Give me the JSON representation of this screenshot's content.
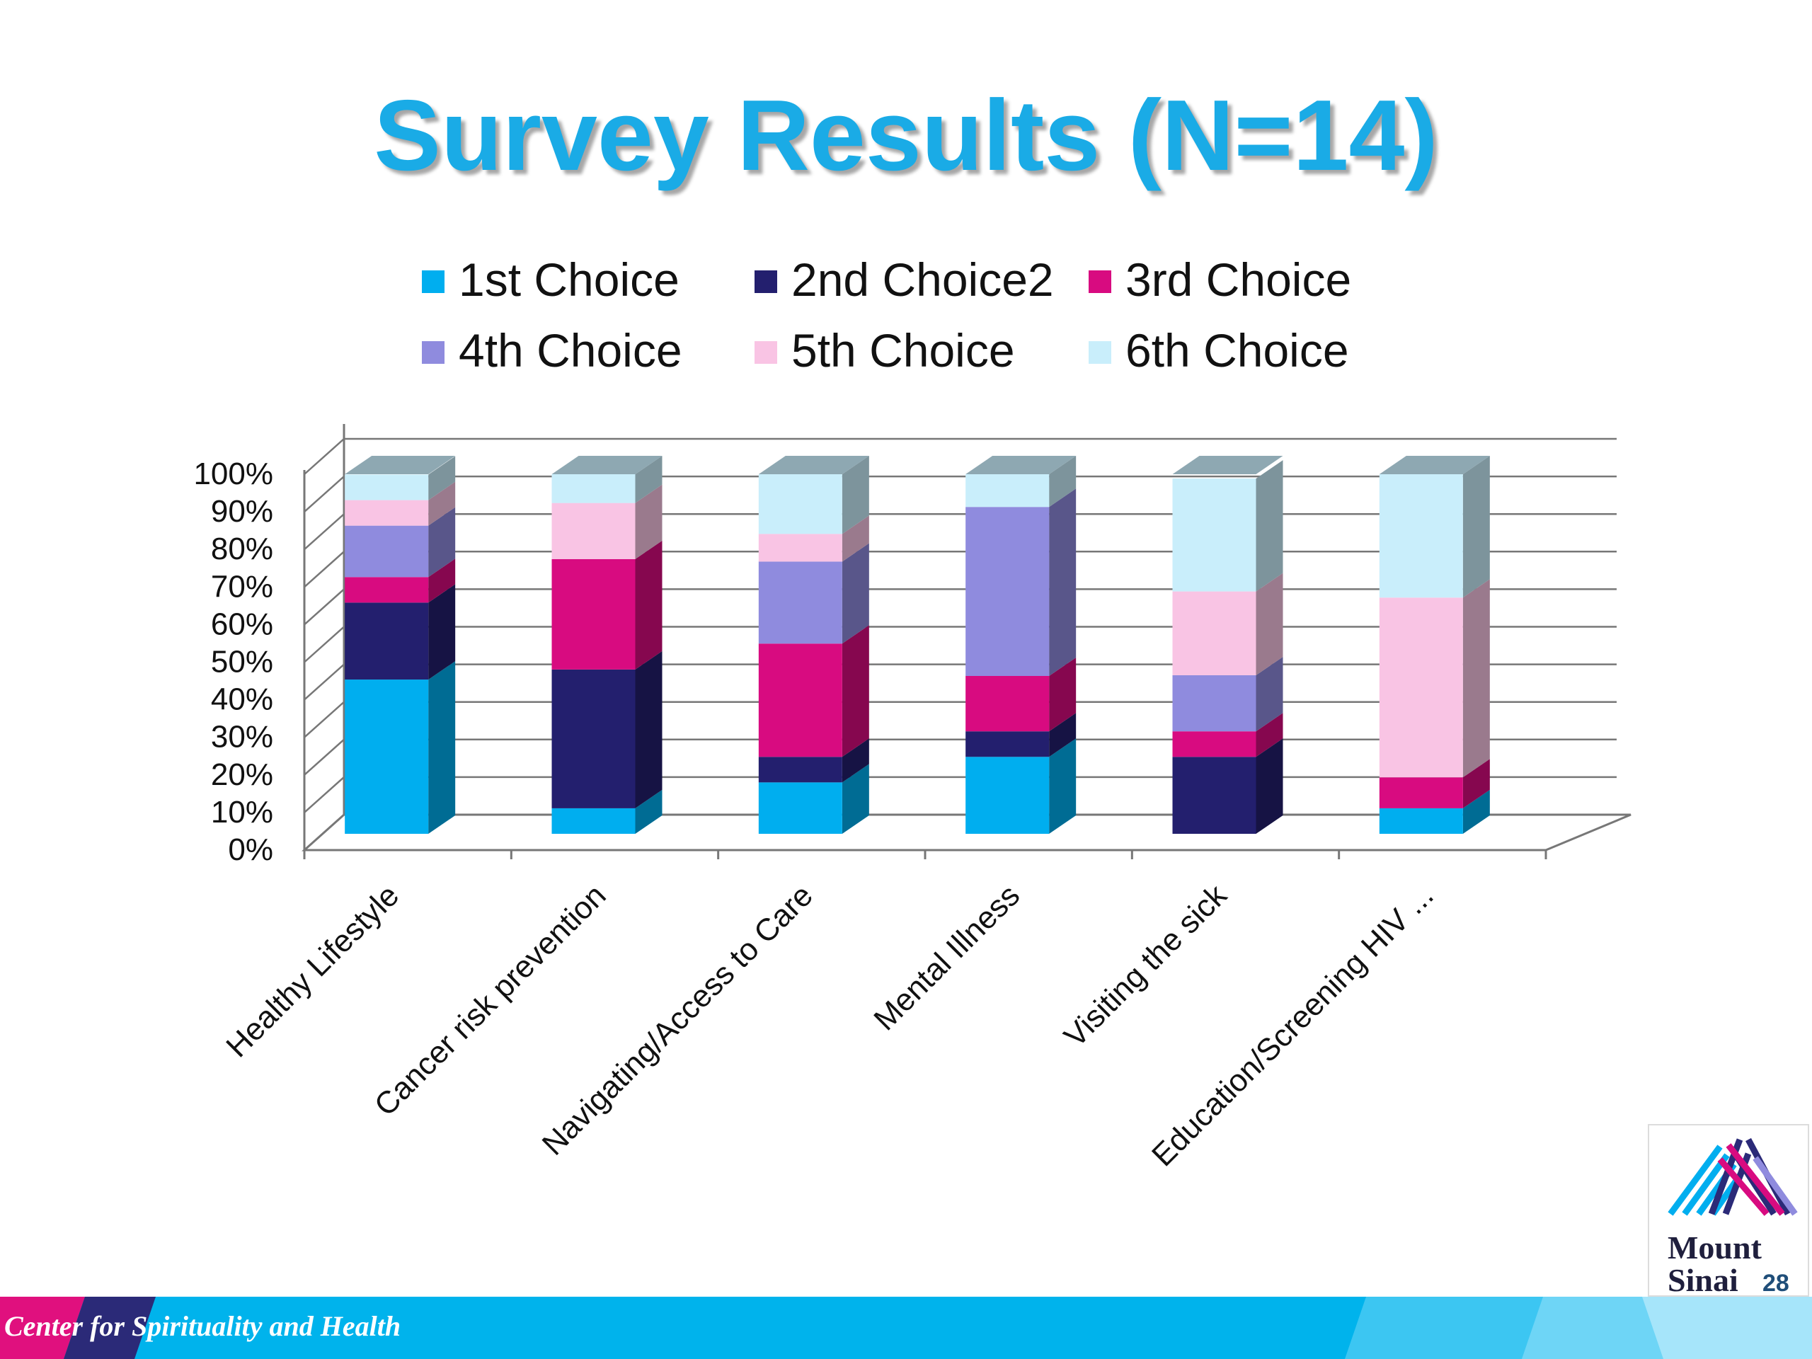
{
  "title": "Survey Results (N=14)",
  "footer": {
    "text": "Center for Spirituality and Health"
  },
  "logo": {
    "line1": "Mount",
    "line2": "Sinai",
    "page_number": "28"
  },
  "colors": {
    "title": "#1aabe6",
    "footer_band": "#00b3ec",
    "footer_accent_pink": "#e0107e",
    "footer_accent_navy": "#2b2a78"
  },
  "chart_data": {
    "type": "bar",
    "stacked": true,
    "percent_stacked": true,
    "three_d": true,
    "categories": [
      "Healthy Lifestyle",
      "Cancer risk prevention",
      "Navigating/Access to Care",
      "Mental Illness",
      "Visiting the sick",
      "Education/Screening HIV ..."
    ],
    "series": [
      {
        "name": "1st Choice",
        "color": "#00aeef",
        "values": [
          42.9,
          7.1,
          14.3,
          21.4,
          0,
          7.1
        ]
      },
      {
        "name": "2nd Choice2",
        "color": "#231f6e",
        "values": [
          21.4,
          38.6,
          7.1,
          7.1,
          21.4,
          0
        ]
      },
      {
        "name": "3rd Choice",
        "color": "#d80b80",
        "values": [
          7.1,
          30.7,
          31.5,
          15.4,
          7.1,
          8.6
        ]
      },
      {
        "name": "4th Choice",
        "color": "#8f8bde",
        "values": [
          14.3,
          0,
          22.8,
          47.0,
          15.6,
          0
        ]
      },
      {
        "name": "5th Choice",
        "color": "#f9c4e4",
        "values": [
          7.1,
          15.6,
          7.7,
          0,
          23.3,
          50.0
        ]
      },
      {
        "name": "6th Choice",
        "color": "#c9eefb",
        "values": [
          7.1,
          8.0,
          16.6,
          9.1,
          31.4,
          34.3
        ]
      }
    ],
    "y_ticks": [
      "0%",
      "10%",
      "20%",
      "30%",
      "40%",
      "50%",
      "60%",
      "70%",
      "80%",
      "90%",
      "100%"
    ],
    "ylim": [
      0,
      100
    ],
    "legend_position": "top",
    "grid": true
  }
}
